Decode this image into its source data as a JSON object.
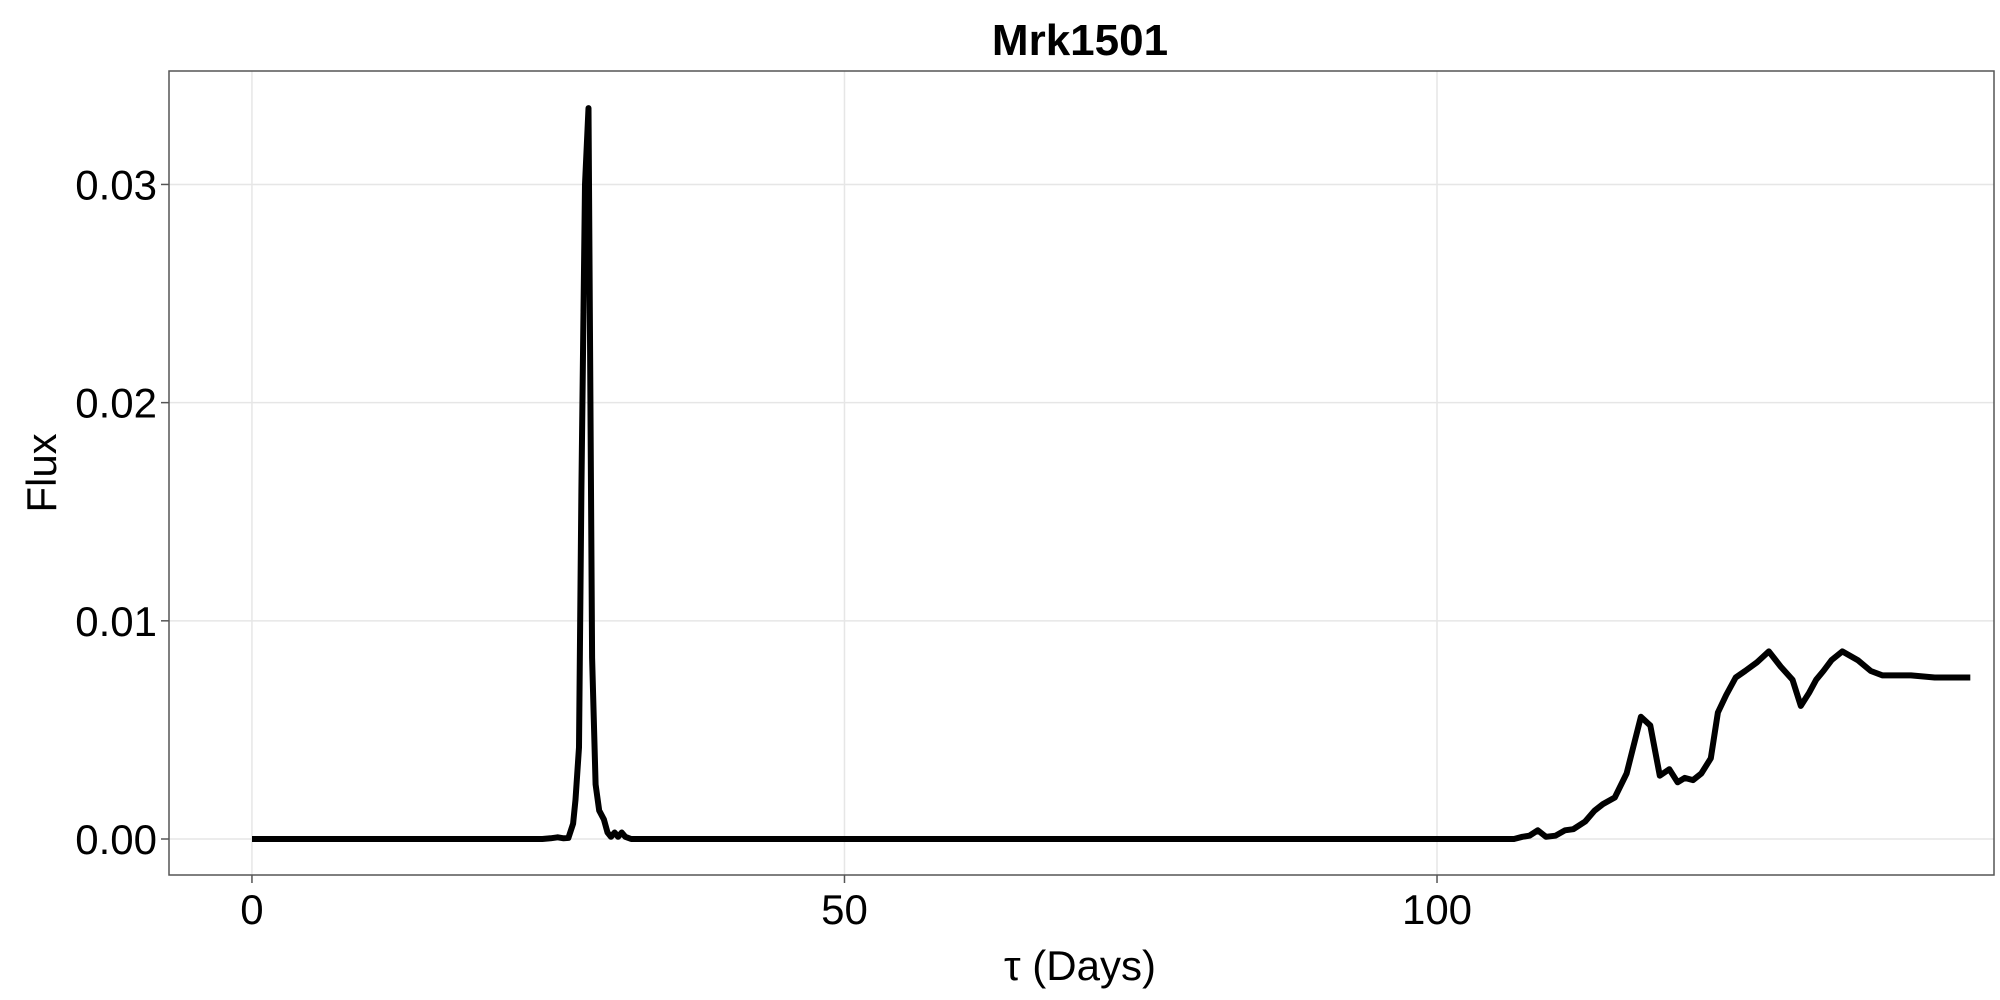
{
  "chart_data": {
    "type": "line",
    "title": "Mrk1501",
    "xlabel": "τ (Days)",
    "ylabel": "Flux",
    "xlim": [
      -7,
      147
    ],
    "ylim": [
      -0.00165,
      0.0352
    ],
    "xticks": [
      0,
      50,
      100
    ],
    "xtick_labels": [
      "0",
      "50",
      "100"
    ],
    "yticks": [
      0.0,
      0.01,
      0.02,
      0.03
    ],
    "ytick_labels": [
      "0.00",
      "0.01",
      "0.02",
      "0.03"
    ],
    "grid": true,
    "series_color": "#000000",
    "series": [
      {
        "x": [
          0,
          10,
          20,
          23.5,
          24.5,
          25.2,
          25.8,
          26.3,
          26.7,
          27.1,
          27.3,
          27.6,
          27.8,
          28.1,
          28.4,
          28.7,
          29.0,
          29.3,
          29.7,
          30.0,
          30.3,
          30.6,
          30.9,
          31.2,
          31.5,
          32.0,
          33.0,
          35,
          50,
          75,
          100,
          106.5,
          107.2,
          107.8,
          108.5,
          109.2,
          110.0,
          110.8,
          111.5,
          112.5,
          113.3,
          114.0,
          115.0,
          116.0,
          117.2,
          118.0,
          118.8,
          119.6,
          120.3,
          120.9,
          121.6,
          122.3,
          123.1,
          123.7,
          124.4,
          125.2,
          126.0,
          127.0,
          128.0,
          129.0,
          130.0,
          130.7,
          131.4,
          132.0,
          132.6,
          133.3,
          134.2,
          135.5,
          136.6,
          137.6,
          138.6,
          140,
          142,
          145
        ],
        "y": [
          0.0,
          0.0,
          0.0,
          0.0,
          0.0,
          3e-05,
          8e-05,
          3e-05,
          5e-05,
          0.0007,
          0.0018,
          0.0042,
          0.016,
          0.03,
          0.0335,
          0.0083,
          0.0025,
          0.0013,
          0.0009,
          0.0003,
          0.0001,
          0.0003,
          0.0001,
          0.0003,
          0.0001,
          0.0,
          0.0,
          0.0,
          0.0,
          0.0,
          0.0,
          0.0,
          0.0001,
          0.00015,
          0.0004,
          0.0001,
          0.00015,
          0.0004,
          0.00045,
          0.0008,
          0.0013,
          0.0016,
          0.0019,
          0.003,
          0.0056,
          0.0052,
          0.0029,
          0.0032,
          0.0026,
          0.0028,
          0.0027,
          0.003,
          0.0037,
          0.0058,
          0.0066,
          0.0074,
          0.0077,
          0.0081,
          0.0086,
          0.0079,
          0.0073,
          0.0061,
          0.0067,
          0.0073,
          0.0077,
          0.0082,
          0.0086,
          0.0082,
          0.0077,
          0.0075,
          0.0075,
          0.0075,
          0.0074,
          0.0074
        ]
      }
    ]
  }
}
